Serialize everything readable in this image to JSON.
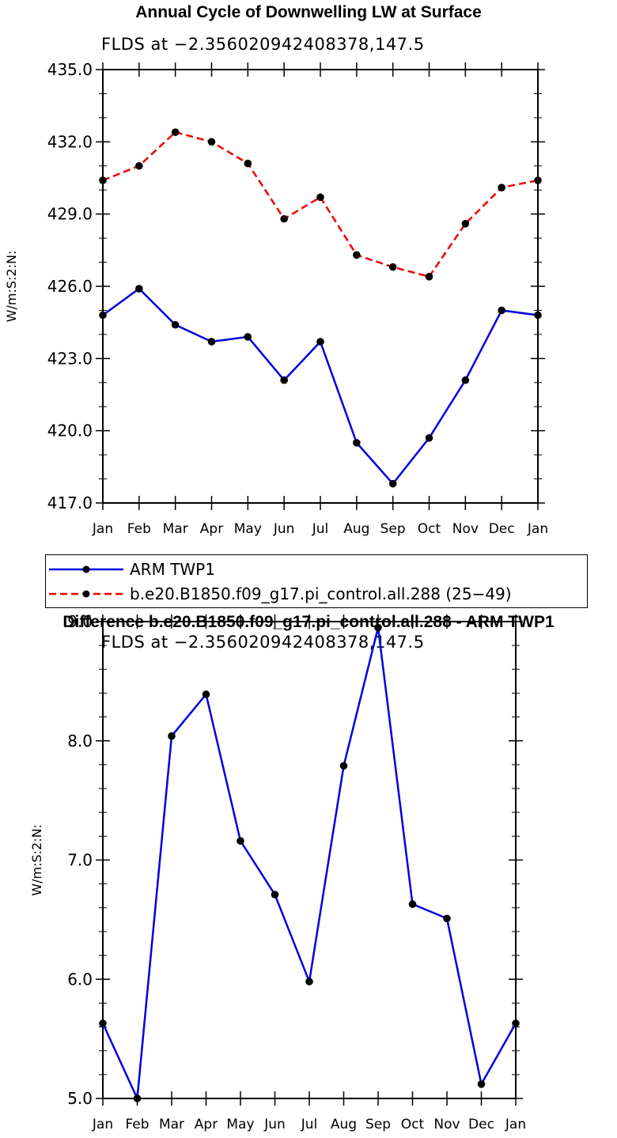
{
  "chart_data": [
    {
      "type": "line",
      "title": "Annual Cycle of Downwelling LW at Surface",
      "subtitle": "FLDS at −2.356020942408378,147.5",
      "ylabel": "W/m:S:2:N:",
      "xlabel": "",
      "ylim": [
        417.0,
        435.0
      ],
      "yticks": [
        "417.0",
        "420.0",
        "423.0",
        "426.0",
        "429.0",
        "432.0",
        "435.0"
      ],
      "categories": [
        "Jan",
        "Feb",
        "Mar",
        "Apr",
        "May",
        "Jun",
        "Jul",
        "Aug",
        "Sep",
        "Oct",
        "Nov",
        "Dec",
        "Jan"
      ],
      "series": [
        {
          "name": "ARM TWP1",
          "color": "#0000dd",
          "dash": "solid",
          "values": [
            424.8,
            425.9,
            424.4,
            423.7,
            423.9,
            422.1,
            423.7,
            419.5,
            417.8,
            419.7,
            422.1,
            425.0,
            424.8
          ]
        },
        {
          "name": "b.e20.B1850.f09_g17.pi_control.all.288 (25−49)",
          "color": "#ee0000",
          "dash": "dashed",
          "values": [
            430.4,
            431.0,
            432.4,
            432.0,
            431.1,
            428.8,
            429.7,
            427.3,
            426.8,
            426.4,
            428.6,
            430.1,
            430.4
          ]
        }
      ],
      "legend": "below"
    },
    {
      "type": "line",
      "title": "Difference b.e20.B1850.f09_g17.pi_control.all.288 - ARM TWP1",
      "subtitle": "FLDS at −2.356020942408378,147.5",
      "ylabel": "W/m:S:2:N:",
      "xlabel": "",
      "ylim": [
        5.0,
        9.0
      ],
      "yticks": [
        "5.0",
        "6.0",
        "7.0",
        "8.0",
        "9.0"
      ],
      "categories": [
        "Jan",
        "Feb",
        "Mar",
        "Apr",
        "May",
        "Jun",
        "Jul",
        "Aug",
        "Sep",
        "Oct",
        "Nov",
        "Dec",
        "Jan"
      ],
      "series": [
        {
          "name": "Difference",
          "color": "#0000dd",
          "dash": "solid",
          "values": [
            5.63,
            5.0,
            8.04,
            8.39,
            7.16,
            6.71,
            5.98,
            7.79,
            8.95,
            6.63,
            6.51,
            5.12,
            5.63
          ]
        }
      ]
    }
  ]
}
